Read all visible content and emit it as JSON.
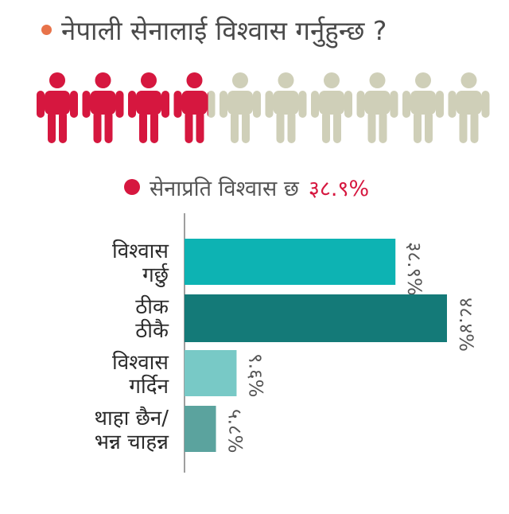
{
  "header": {
    "title": "नेपाली सेनालाई विश्वास गर्नुहुन्छ ?",
    "dot_color": "#e8734a"
  },
  "people_graphic": {
    "total": 10,
    "filled_fraction": 0.389,
    "filled_color": "#d6173f",
    "empty_color": "#cfcfb8",
    "icon": "person-icon"
  },
  "trust_summary": {
    "label": "सेनाप्रति विश्वास छ",
    "value": "३८.९%",
    "dot_color": "#d6173f",
    "value_color": "#d6173f"
  },
  "chart_data": {
    "type": "bar",
    "orientation": "horizontal",
    "categories": [
      [
        "विश्वास",
        "गर्छु"
      ],
      [
        "ठीक",
        "ठीकै"
      ],
      [
        "विश्वास",
        "गर्दिन"
      ],
      [
        "थाहा छैन/",
        "भन्न चाहन्न"
      ]
    ],
    "values": [
      38.9,
      48.4,
      9.6,
      5.8
    ],
    "value_labels": [
      "३८.९%",
      "४८.४%",
      "९.६%",
      "५.८%"
    ],
    "colors": [
      "#0db3b3",
      "#147a78",
      "#78c9c6",
      "#5ba39e"
    ],
    "xlim": [
      0,
      50
    ],
    "grid": false
  }
}
